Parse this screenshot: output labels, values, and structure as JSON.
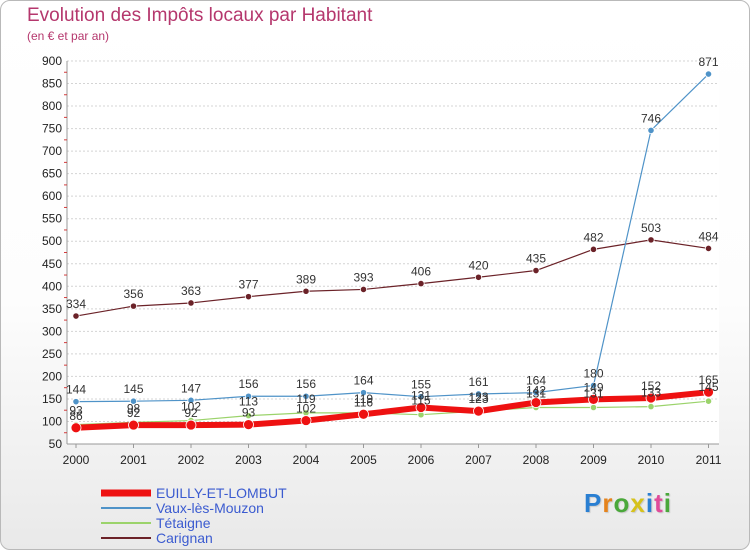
{
  "chart_data": {
    "type": "line",
    "title": "Evolution des Impôts locaux par Habitant",
    "subtitle": "(en € et par an)",
    "xlabel": "",
    "ylabel": "",
    "ylim": [
      50,
      900
    ],
    "y_ticks": [
      50,
      100,
      150,
      200,
      250,
      300,
      350,
      400,
      450,
      500,
      550,
      600,
      650,
      700,
      750,
      800,
      850,
      900
    ],
    "grid": true,
    "categories": [
      "2000",
      "2001",
      "2002",
      "2003",
      "2004",
      "2005",
      "2006",
      "2007",
      "2008",
      "2009",
      "2010",
      "2011"
    ],
    "series": [
      {
        "name": "Carignan",
        "color": "#6b2228",
        "values": [
          334,
          356,
          363,
          377,
          389,
          393,
          406,
          420,
          435,
          482,
          503,
          484
        ],
        "labels": [
          "334",
          "356",
          "363",
          "377",
          "389",
          "393",
          "406",
          "420",
          "435",
          "482",
          "503",
          "484"
        ]
      },
      {
        "name": "Vaux-lès-Mouzon",
        "color": "#4f93c8",
        "values": [
          144,
          145,
          147,
          156,
          156,
          164,
          155,
          161,
          164,
          180,
          746,
          871
        ],
        "labels": [
          "144",
          "145",
          "147",
          "156",
          "156",
          "164",
          "155",
          "161",
          "164",
          "180",
          "746",
          "871"
        ]
      },
      {
        "name": "Tétaigne",
        "color": "#9bd36b",
        "values": [
          93,
          98,
          102,
          113,
          119,
          119,
          115,
          123,
          131,
          131,
          133,
          145
        ],
        "labels": [
          "93",
          "98",
          "102",
          "113",
          "119",
          "119",
          "115",
          "123",
          "131",
          "131",
          "133",
          "145"
        ]
      },
      {
        "name": "EUILLY-ET-LOMBUT",
        "color": "#ee1111",
        "values": [
          86,
          92,
          92,
          93,
          102,
          116,
          131,
          123,
          142,
          149,
          152,
          165
        ],
        "labels": [
          "86",
          "92",
          "92",
          "93",
          "102",
          "116",
          "131",
          "123",
          "142",
          "149",
          "152",
          "165"
        ]
      }
    ],
    "legend": [
      {
        "name": "EUILLY-ET-LOMBUT",
        "color": "#ee1111",
        "thick": true
      },
      {
        "name": "Vaux-lès-Mouzon",
        "color": "#4f93c8",
        "thick": false
      },
      {
        "name": "Tétaigne",
        "color": "#9bd36b",
        "thick": false
      },
      {
        "name": "Carignan",
        "color": "#6b2228",
        "thick": false
      }
    ],
    "legend_position": "bottom-left"
  },
  "logo": {
    "letters": [
      "P",
      "r",
      "o",
      "x",
      "i",
      "t",
      "i"
    ]
  },
  "colors": {
    "title": "#b5376d",
    "legend_text": "#3b5bd0",
    "axis_text": "#222222"
  }
}
